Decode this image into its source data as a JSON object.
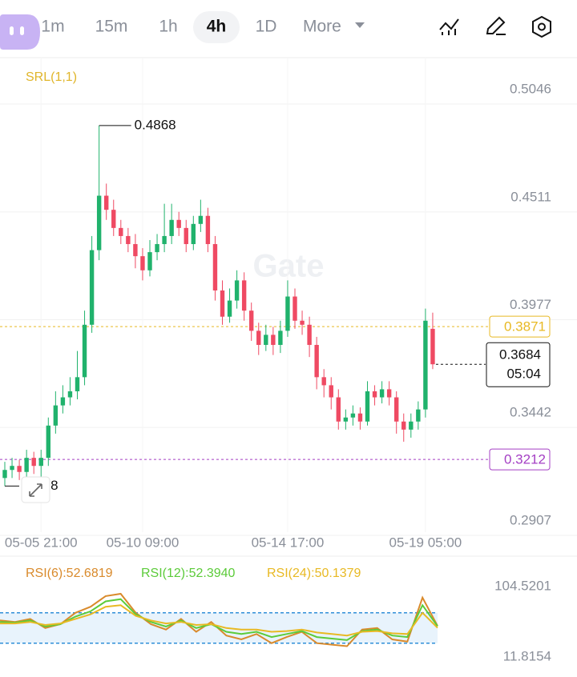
{
  "toolbar": {
    "intervals": [
      "1m",
      "15m",
      "1h",
      "4h",
      "1D"
    ],
    "selected_index": 3,
    "more": "More"
  },
  "chart_data": [
    {
      "type": "candlestick",
      "indicator": "SRL(1,1)",
      "watermark": "Gate",
      "categories": [
        null,
        null,
        null,
        null,
        null,
        "05-05 21:00",
        null,
        null,
        null,
        null,
        null,
        null,
        null,
        null,
        null,
        null,
        null,
        null,
        null,
        "05-10 09:00",
        null,
        null,
        null,
        null,
        null,
        null,
        null,
        null,
        null,
        null,
        null,
        null,
        null,
        null,
        null,
        null,
        null,
        null,
        null,
        "05-14 17:00",
        null,
        null,
        null,
        null,
        null,
        null,
        null,
        null,
        null,
        null,
        null,
        null,
        null,
        null,
        null,
        null,
        null,
        null,
        "05-19 05:00",
        null
      ],
      "open": [
        0.312,
        0.316,
        0.318,
        0.315,
        0.322,
        0.318,
        0.322,
        0.338,
        0.348,
        0.352,
        0.355,
        0.362,
        0.388,
        0.425,
        0.452,
        0.445,
        0.436,
        0.432,
        0.428,
        0.422,
        0.415,
        0.424,
        0.428,
        0.432,
        0.44,
        0.436,
        0.428,
        0.438,
        0.442,
        0.428,
        0.405,
        0.392,
        0.4,
        0.41,
        0.395,
        0.385,
        0.378,
        0.383,
        0.378,
        0.385,
        0.402,
        0.39,
        0.388,
        0.378,
        0.362,
        0.358,
        0.352,
        0.34,
        0.342,
        0.344,
        0.34,
        0.355,
        0.352,
        0.356,
        0.352,
        0.34,
        0.336,
        0.34,
        0.346,
        0.386
      ],
      "high": [
        0.32,
        0.322,
        0.321,
        0.326,
        0.325,
        0.326,
        0.342,
        0.355,
        0.358,
        0.362,
        0.375,
        0.395,
        0.432,
        0.4868,
        0.458,
        0.45,
        0.44,
        0.436,
        0.433,
        0.426,
        0.43,
        0.433,
        0.448,
        0.448,
        0.444,
        0.44,
        0.442,
        0.45,
        0.446,
        0.432,
        0.41,
        0.406,
        0.415,
        0.414,
        0.399,
        0.389,
        0.388,
        0.387,
        0.39,
        0.41,
        0.406,
        0.395,
        0.392,
        0.382,
        0.366,
        0.362,
        0.356,
        0.346,
        0.348,
        0.347,
        0.36,
        0.358,
        0.36,
        0.36,
        0.355,
        0.344,
        0.344,
        0.35,
        0.396,
        0.394
      ],
      "low": [
        0.308,
        0.312,
        0.311,
        0.312,
        0.314,
        0.3086,
        0.318,
        0.334,
        0.344,
        0.348,
        0.351,
        0.358,
        0.384,
        0.42,
        0.44,
        0.432,
        0.428,
        0.424,
        0.416,
        0.41,
        0.412,
        0.42,
        0.424,
        0.428,
        0.432,
        0.424,
        0.425,
        0.434,
        0.424,
        0.4,
        0.388,
        0.389,
        0.396,
        0.39,
        0.38,
        0.373,
        0.375,
        0.373,
        0.374,
        0.382,
        0.386,
        0.383,
        0.372,
        0.356,
        0.352,
        0.346,
        0.336,
        0.336,
        0.338,
        0.336,
        0.338,
        0.348,
        0.349,
        0.348,
        0.334,
        0.33,
        0.332,
        0.336,
        0.342,
        0.366
      ],
      "close": [
        0.316,
        0.318,
        0.315,
        0.322,
        0.318,
        0.322,
        0.338,
        0.348,
        0.352,
        0.355,
        0.362,
        0.388,
        0.425,
        0.452,
        0.445,
        0.436,
        0.432,
        0.428,
        0.422,
        0.415,
        0.424,
        0.428,
        0.432,
        0.44,
        0.436,
        0.428,
        0.438,
        0.442,
        0.428,
        0.405,
        0.392,
        0.4,
        0.41,
        0.395,
        0.385,
        0.378,
        0.383,
        0.378,
        0.385,
        0.402,
        0.39,
        0.388,
        0.378,
        0.362,
        0.358,
        0.352,
        0.34,
        0.342,
        0.344,
        0.34,
        0.355,
        0.352,
        0.356,
        0.352,
        0.34,
        0.336,
        0.34,
        0.346,
        0.39,
        0.3684
      ],
      "up_color": "#20b26c",
      "down_color": "#ef4a63",
      "ylim": [
        0.2907,
        0.5046
      ],
      "yticks": [
        0.5046,
        0.4511,
        0.3977,
        0.3442,
        0.2907
      ],
      "grid": true,
      "levels": [
        {
          "value": 0.3871,
          "color": "#e8b923"
        },
        {
          "value": 0.3212,
          "color": "#a43fc4"
        }
      ],
      "countdown": "05:04"
    },
    {
      "type": "line",
      "series": [
        {
          "name": "RSI(6):52.6819",
          "color": "#d98a2b",
          "values": [
            60,
            58,
            62,
            50,
            55,
            70,
            78,
            92,
            95,
            70,
            55,
            48,
            62,
            45,
            58,
            40,
            35,
            42,
            30,
            38,
            45,
            30,
            28,
            26,
            48,
            50,
            35,
            32,
            90,
            52.6819
          ]
        },
        {
          "name": "RSI(12):52.3940",
          "color": "#5ccb3a",
          "values": [
            58,
            57,
            60,
            52,
            55,
            65,
            72,
            85,
            88,
            68,
            58,
            52,
            60,
            50,
            55,
            45,
            42,
            45,
            38,
            42,
            46,
            38,
            36,
            34,
            46,
            48,
            40,
            38,
            80,
            52.394
          ]
        },
        {
          "name": "RSI(24):50.1379",
          "color": "#e8b923",
          "values": [
            56,
            56,
            58,
            54,
            56,
            62,
            68,
            78,
            80,
            66,
            60,
            56,
            58,
            54,
            55,
            50,
            48,
            48,
            45,
            46,
            48,
            44,
            42,
            40,
            45,
            46,
            43,
            42,
            70,
            50.1379
          ]
        }
      ],
      "ylim": [
        11.8154,
        104.5201
      ],
      "yticks": [
        104.5201,
        11.8154
      ],
      "bands": [
        30,
        70
      ],
      "band_color": "#2f8fd8"
    }
  ]
}
